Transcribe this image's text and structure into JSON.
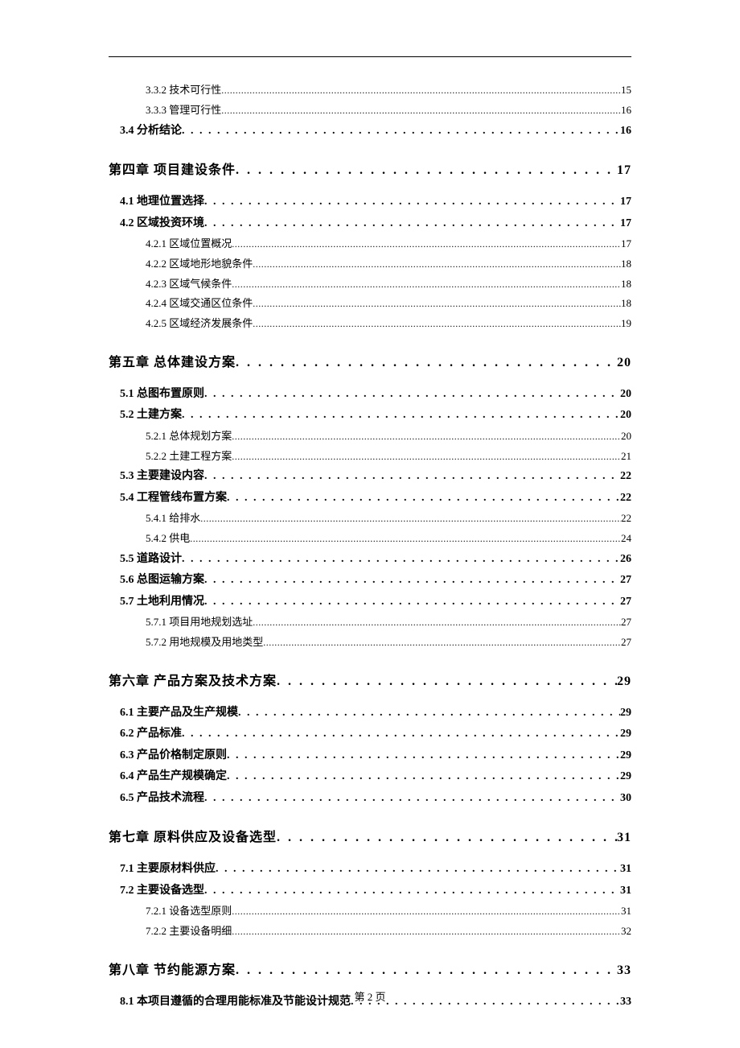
{
  "page": {
    "footer": "第 2 页",
    "background_color": "#ffffff",
    "text_color": "#000000",
    "font_family": "SimSun"
  },
  "toc": {
    "entries": [
      {
        "level": 3,
        "title": "3.3.2 技术可行性",
        "page": "15"
      },
      {
        "level": 3,
        "title": "3.3.3 管理可行性",
        "page": "16"
      },
      {
        "level": 2,
        "title": "3.4 分析结论",
        "page": "16"
      },
      {
        "level": 1,
        "title": "第四章  项目建设条件",
        "page": "17"
      },
      {
        "level": 2,
        "title": "4.1 地理位置选择",
        "page": "17"
      },
      {
        "level": 2,
        "title": "4.2 区域投资环境",
        "page": "17"
      },
      {
        "level": 3,
        "title": "4.2.1 区域位置概况",
        "page": "17"
      },
      {
        "level": 3,
        "title": "4.2.2 区域地形地貌条件",
        "page": "18"
      },
      {
        "level": 3,
        "title": "4.2.3 区域气候条件",
        "page": "18"
      },
      {
        "level": 3,
        "title": "4.2.4 区域交通区位条件",
        "page": "18"
      },
      {
        "level": 3,
        "title": "4.2.5 区域经济发展条件",
        "page": "19"
      },
      {
        "level": 1,
        "title": "第五章  总体建设方案",
        "page": "20"
      },
      {
        "level": 2,
        "title": "5.1 总图布置原则",
        "page": "20"
      },
      {
        "level": 2,
        "title": "5.2 土建方案",
        "page": "20"
      },
      {
        "level": 3,
        "title": "5.2.1 总体规划方案",
        "page": "20"
      },
      {
        "level": 3,
        "title": "5.2.2 土建工程方案",
        "page": "21"
      },
      {
        "level": 2,
        "title": "5.3 主要建设内容",
        "page": "22"
      },
      {
        "level": 2,
        "title": "5.4 工程管线布置方案",
        "page": "22"
      },
      {
        "level": 3,
        "title": "5.4.1 给排水",
        "page": "22"
      },
      {
        "level": 3,
        "title": "5.4.2 供电",
        "page": "24"
      },
      {
        "level": 2,
        "title": "5.5 道路设计",
        "page": "26"
      },
      {
        "level": 2,
        "title": "5.6 总图运输方案",
        "page": "27"
      },
      {
        "level": 2,
        "title": "5.7 土地利用情况",
        "page": "27"
      },
      {
        "level": 3,
        "title": "5.7.1 项目用地规划选址",
        "page": "27"
      },
      {
        "level": 3,
        "title": "5.7.2 用地规模及用地类型",
        "page": "27"
      },
      {
        "level": 1,
        "title": "第六章  产品方案及技术方案",
        "page": "29"
      },
      {
        "level": 2,
        "title": "6.1 主要产品及生产规模",
        "page": "29"
      },
      {
        "level": 2,
        "title": "6.2 产品标准",
        "page": "29"
      },
      {
        "level": 2,
        "title": "6.3 产品价格制定原则",
        "page": "29"
      },
      {
        "level": 2,
        "title": "6.4 产品生产规模确定",
        "page": "29"
      },
      {
        "level": 2,
        "title": "6.5 产品技术流程",
        "page": "30"
      },
      {
        "level": 1,
        "title": "第七章  原料供应及设备选型",
        "page": "31"
      },
      {
        "level": 2,
        "title": "7.1 主要原材料供应",
        "page": "31"
      },
      {
        "level": 2,
        "title": "7.2 主要设备选型",
        "page": "31"
      },
      {
        "level": 3,
        "title": "7.2.1 设备选型原则",
        "page": "31"
      },
      {
        "level": 3,
        "title": "7.2.2 主要设备明细",
        "page": "32"
      },
      {
        "level": 1,
        "title": "第八章  节约能源方案",
        "page": "33"
      },
      {
        "level": 2,
        "title": "8.1 本项目遵循的合理用能标准及节能设计规范",
        "page": "33"
      }
    ]
  },
  "styling": {
    "level1_fontsize": 16,
    "level2_fontsize": 14,
    "level3_fontsize": 13,
    "level1_indent": 0,
    "level2_indent": 14,
    "level3_indent": 46,
    "dot_char": "."
  }
}
